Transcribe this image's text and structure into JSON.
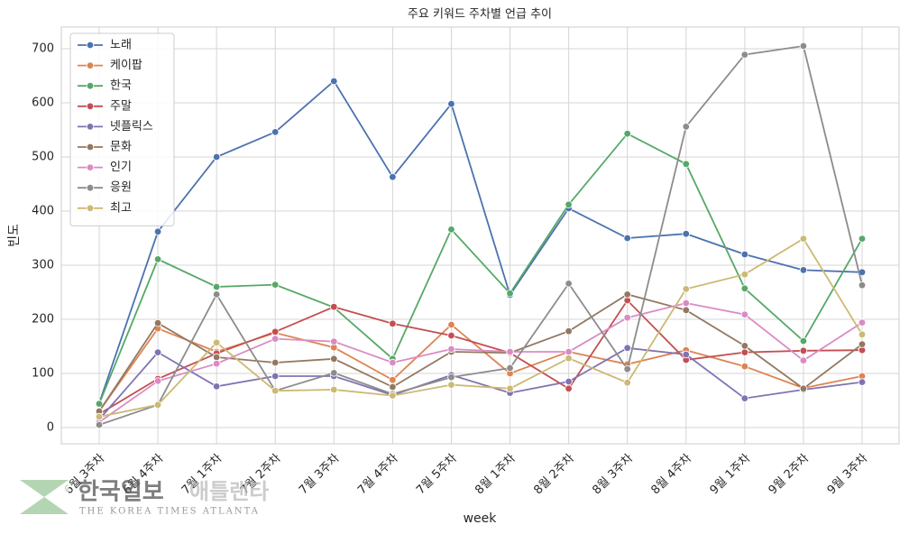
{
  "chart_data": {
    "type": "line",
    "title": "주요 키워드 주차별 언급 추이",
    "x_label": "week",
    "y_label": "빈도",
    "categories": [
      "6월 3주차",
      "6월 4주차",
      "7월 1주차",
      "7월 2주차",
      "7월 3주차",
      "7월 4주차",
      "7월 5주차",
      "8월 1주차",
      "8월 2주차",
      "8월 3주차",
      "8월 4주차",
      "9월 1주차",
      "9월 2주차",
      "9월 3주차"
    ],
    "series": [
      {
        "name": "노래",
        "color": "#4c72b0",
        "values": [
          45,
          362,
          500,
          546,
          640,
          463,
          598,
          245,
          405,
          350,
          358,
          320,
          291,
          287
        ]
      },
      {
        "name": "케이팝",
        "color": "#dd8452",
        "values": [
          30,
          183,
          140,
          175,
          148,
          88,
          190,
          100,
          140,
          117,
          143,
          113,
          73,
          95
        ]
      },
      {
        "name": "한국",
        "color": "#55a868",
        "values": [
          44,
          311,
          260,
          264,
          222,
          127,
          366,
          248,
          412,
          543,
          487,
          257,
          160,
          349
        ]
      },
      {
        "name": "주말",
        "color": "#c44e52",
        "values": [
          25,
          90,
          137,
          177,
          223,
          192,
          170,
          138,
          72,
          235,
          125,
          139,
          142,
          143
        ]
      },
      {
        "name": "넷플릭스",
        "color": "#8172b3",
        "values": [
          15,
          139,
          76,
          95,
          95,
          60,
          97,
          64,
          85,
          147,
          135,
          54,
          70,
          84
        ]
      },
      {
        "name": "문화",
        "color": "#937860",
        "values": [
          30,
          193,
          130,
          120,
          127,
          75,
          140,
          138,
          178,
          246,
          217,
          151,
          72,
          154
        ]
      },
      {
        "name": "인기",
        "color": "#da8bc3",
        "values": [
          10,
          86,
          118,
          164,
          159,
          120,
          145,
          140,
          140,
          203,
          230,
          209,
          124,
          194
        ]
      },
      {
        "name": "응원",
        "color": "#8c8c8c",
        "values": [
          5,
          42,
          246,
          68,
          101,
          62,
          93,
          110,
          266,
          108,
          556,
          689,
          705,
          263
        ]
      },
      {
        "name": "최고",
        "color": "#ccb974",
        "values": [
          20,
          42,
          157,
          68,
          70,
          59,
          79,
          72,
          128,
          83,
          256,
          283,
          349,
          172
        ]
      }
    ],
    "ylim": [
      -30,
      740
    ],
    "yticks": [
      0,
      100,
      200,
      300,
      400,
      500,
      600,
      700
    ],
    "grid": true,
    "legend": "upper-left"
  },
  "watermark": {
    "brand": "한국일보",
    "region": "애틀랜타",
    "subtitle": "THE KOREA TIMES ATLANTA"
  }
}
